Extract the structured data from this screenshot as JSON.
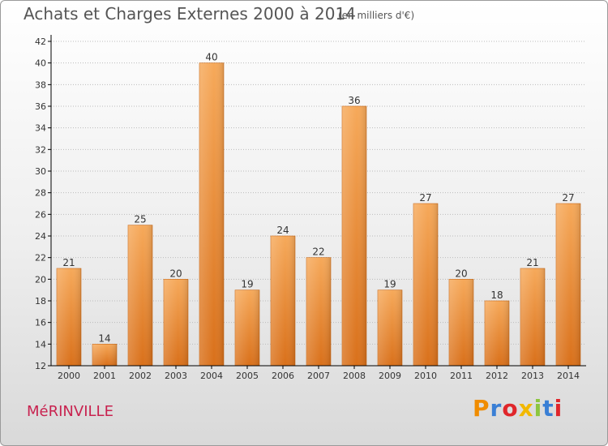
{
  "header": {
    "title": "Achats et Charges Externes 2000 à 2014",
    "subtitle": "(en milliers d'€)"
  },
  "footer": {
    "commune": "MéRINVILLE",
    "logo_text": "Proxiti",
    "logo_colors": [
      "#f08c00",
      "#3a7fd5",
      "#e0262b",
      "#f2b800",
      "#8cc63f",
      "#3a7fd5",
      "#e0262b"
    ]
  },
  "colors": {
    "bar_top": "#f6a95a",
    "bar_bottom": "#d9701a",
    "axis": "#000000",
    "grid": "#bbbbbb",
    "title": "#555555",
    "commune": "#c8224f"
  },
  "chart_data": {
    "type": "bar",
    "title": "Achats et Charges Externes 2000 à 2014",
    "subtitle": "(en milliers d'€)",
    "categories": [
      "2000",
      "2001",
      "2002",
      "2003",
      "2004",
      "2005",
      "2006",
      "2007",
      "2008",
      "2009",
      "2010",
      "2011",
      "2012",
      "2013",
      "2014"
    ],
    "values": [
      21,
      14,
      25,
      20,
      40,
      19,
      24,
      22,
      36,
      19,
      27,
      20,
      18,
      21,
      27
    ],
    "data_labels": [
      "21",
      "14",
      "25",
      "20",
      "40",
      "19",
      "24",
      "22",
      "36",
      "19",
      "27",
      "20",
      "18",
      "21",
      "27"
    ],
    "ylim": [
      12,
      42
    ],
    "yticks": [
      12,
      14,
      16,
      18,
      20,
      22,
      24,
      26,
      28,
      30,
      32,
      34,
      36,
      38,
      40,
      42
    ],
    "grid": "horizontal",
    "xlabel": "",
    "ylabel": ""
  }
}
